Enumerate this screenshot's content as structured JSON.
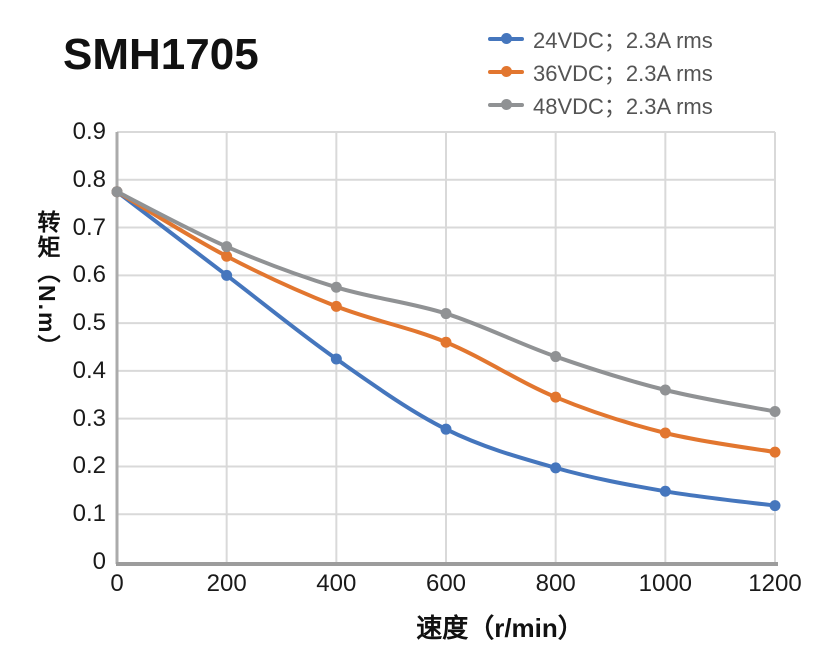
{
  "chart_data": {
    "type": "line",
    "title": "SMH1705",
    "xlabel": "速度（r/min）",
    "ylabel": "转矩（N.m）",
    "x": [
      0,
      200,
      400,
      600,
      800,
      1000,
      1200
    ],
    "x_ticks": [
      "0",
      "200",
      "400",
      "600",
      "800",
      "1000",
      "1200"
    ],
    "y_ticks": [
      "0",
      "0.1",
      "0.2",
      "0.3",
      "0.4",
      "0.5",
      "0.6",
      "0.7",
      "0.8",
      "0.9"
    ],
    "xlim": [
      0,
      1200
    ],
    "ylim": [
      0,
      0.9
    ],
    "grid": true,
    "line_style": "smooth",
    "marker": "circle",
    "legend_position": "top-right",
    "series": [
      {
        "name": "24VDC；2.3A rms",
        "color": "#4576BD",
        "values": [
          0.775,
          0.6,
          0.425,
          0.278,
          0.197,
          0.148,
          0.118
        ]
      },
      {
        "name": "36VDC；2.3A rms",
        "color": "#E2762F",
        "values": [
          0.775,
          0.64,
          0.535,
          0.46,
          0.345,
          0.27,
          0.23
        ]
      },
      {
        "name": "48VDC；2.3A rms",
        "color": "#909294",
        "values": [
          0.775,
          0.66,
          0.575,
          0.52,
          0.43,
          0.36,
          0.315
        ]
      }
    ],
    "colors": {
      "gridline": "#D9D9D9",
      "axis_left": "#ABABAB",
      "axis_bottom": "#9C9C9C",
      "tick_text": "#1A1A1A",
      "legend_text": "#545454",
      "title_text": "#111111"
    }
  }
}
